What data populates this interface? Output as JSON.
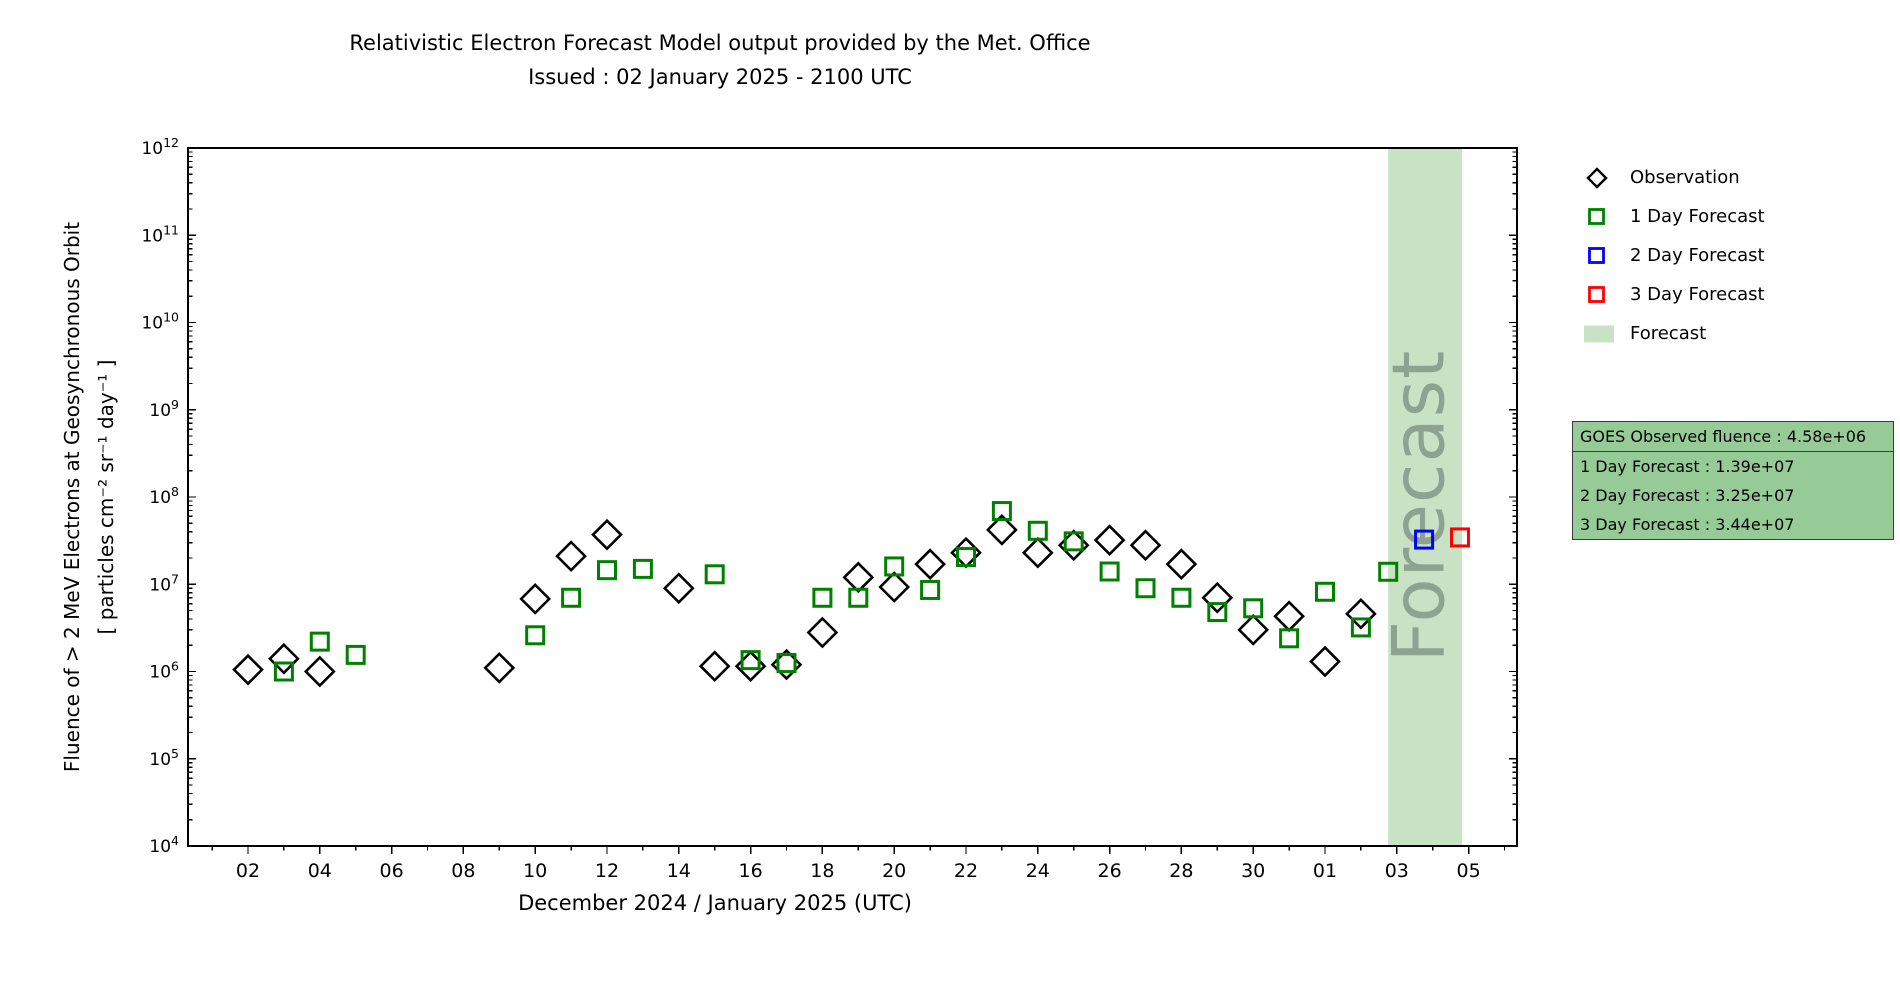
{
  "chart_data": {
    "type": "scatter",
    "title_line1": "Relativistic Electron Forecast Model output provided by the Met. Office",
    "title_line2": "Issued : 02 January 2025 - 2100 UTC",
    "xlabel": "December 2024 / January 2025 (UTC)",
    "ylabel_line1": "Fluence of > 2 MeV Electrons at Geosynchronous Orbit",
    "ylabel_line2": "[ particles cm⁻² sr⁻¹ day⁻¹ ]",
    "y_axis": {
      "scale": "log",
      "min_exp": 4,
      "max_exp": 12
    },
    "x_axis": {
      "day_range": [
        0.35,
        37.42
      ],
      "ticks": [
        {
          "day": 2,
          "label": "02"
        },
        {
          "day": 4,
          "label": "04"
        },
        {
          "day": 6,
          "label": "06"
        },
        {
          "day": 8,
          "label": "08"
        },
        {
          "day": 10,
          "label": "10"
        },
        {
          "day": 12,
          "label": "12"
        },
        {
          "day": 14,
          "label": "14"
        },
        {
          "day": 16,
          "label": "16"
        },
        {
          "day": 18,
          "label": "18"
        },
        {
          "day": 20,
          "label": "20"
        },
        {
          "day": 22,
          "label": "22"
        },
        {
          "day": 24,
          "label": "24"
        },
        {
          "day": 26,
          "label": "26"
        },
        {
          "day": 28,
          "label": "28"
        },
        {
          "day": 30,
          "label": "30"
        },
        {
          "day": 32,
          "label": "01"
        },
        {
          "day": 34,
          "label": "03"
        },
        {
          "day": 36,
          "label": "05"
        }
      ]
    },
    "forecast_band": {
      "start_day": 33.76,
      "end_day": 35.82,
      "color": "#c9e2c6",
      "label": "Forecast",
      "label_color": "#8ea38f"
    },
    "series": [
      {
        "name": "Observation",
        "marker": "diamond",
        "color": "#000000",
        "points": [
          [
            2,
            1050000.0
          ],
          [
            3,
            1400000.0
          ],
          [
            4,
            1000000.0
          ],
          [
            9,
            1100000.0
          ],
          [
            10,
            6800000.0
          ],
          [
            11,
            21000000.0
          ],
          [
            12,
            37000000.0
          ],
          [
            14,
            9000000.0
          ],
          [
            15,
            1150000.0
          ],
          [
            16,
            1150000.0
          ],
          [
            17,
            1200000.0
          ],
          [
            18,
            2800000.0
          ],
          [
            19,
            12000000.0
          ],
          [
            20,
            9300000.0
          ],
          [
            21,
            17000000.0
          ],
          [
            22,
            23000000.0
          ],
          [
            23,
            42000000.0
          ],
          [
            24,
            23000000.0
          ],
          [
            25,
            28000000.0
          ],
          [
            26,
            32000000.0
          ],
          [
            27,
            28000000.0
          ],
          [
            28,
            17000000.0
          ],
          [
            29,
            7000000.0
          ],
          [
            30,
            3000000.0
          ],
          [
            31,
            4300000.0
          ],
          [
            32,
            1300000.0
          ],
          [
            33,
            4580000.0
          ]
        ]
      },
      {
        "name": "1 Day Forecast",
        "marker": "square",
        "color": "#008000",
        "points": [
          [
            3,
            1000000.0
          ],
          [
            4,
            2200000.0
          ],
          [
            5,
            1550000.0
          ],
          [
            10,
            2600000.0
          ],
          [
            11,
            7000000.0
          ],
          [
            12,
            14500000.0
          ],
          [
            13,
            15000000.0
          ],
          [
            15,
            13000000.0
          ],
          [
            16,
            1350000.0
          ],
          [
            17,
            1250000.0
          ],
          [
            18,
            7000000.0
          ],
          [
            19,
            7000000.0
          ],
          [
            20,
            16000000.0
          ],
          [
            21,
            8600000.0
          ],
          [
            22,
            20500000.0
          ],
          [
            23,
            69000000.0
          ],
          [
            24,
            41000000.0
          ],
          [
            25,
            31000000.0
          ],
          [
            26,
            14000000.0
          ],
          [
            27,
            9000000.0
          ],
          [
            28,
            7000000.0
          ],
          [
            29,
            4800000.0
          ],
          [
            30,
            5300000.0
          ],
          [
            31,
            2400000.0
          ],
          [
            32,
            8200000.0
          ],
          [
            33,
            3200000.0
          ],
          [
            33.76,
            13900000.0
          ]
        ]
      },
      {
        "name": "2 Day Forecast",
        "marker": "square",
        "color": "#0000ff",
        "points": [
          [
            34.76,
            32500000.0
          ]
        ]
      },
      {
        "name": "3 Day Forecast",
        "marker": "square",
        "color": "#ff0000",
        "points": [
          [
            35.76,
            34400000.0
          ]
        ]
      }
    ],
    "legend": {
      "entries": [
        {
          "label": "Observation",
          "marker": "diamond",
          "color": "#000000"
        },
        {
          "label": "1 Day Forecast",
          "marker": "square",
          "color": "#008000"
        },
        {
          "label": "2 Day Forecast",
          "marker": "square",
          "color": "#0000ff"
        },
        {
          "label": "3 Day Forecast",
          "marker": "square",
          "color": "#ff0000"
        },
        {
          "label": "Forecast",
          "marker": "patch",
          "color": "#c9e2c6"
        }
      ]
    },
    "info_box": {
      "bg_color": "#96ca96",
      "rows": [
        "GOES Observed fluence : 4.58e+06",
        "1 Day Forecast : 1.39e+07",
        "2 Day Forecast : 3.25e+07",
        "3 Day Forecast : 3.44e+07"
      ]
    }
  }
}
